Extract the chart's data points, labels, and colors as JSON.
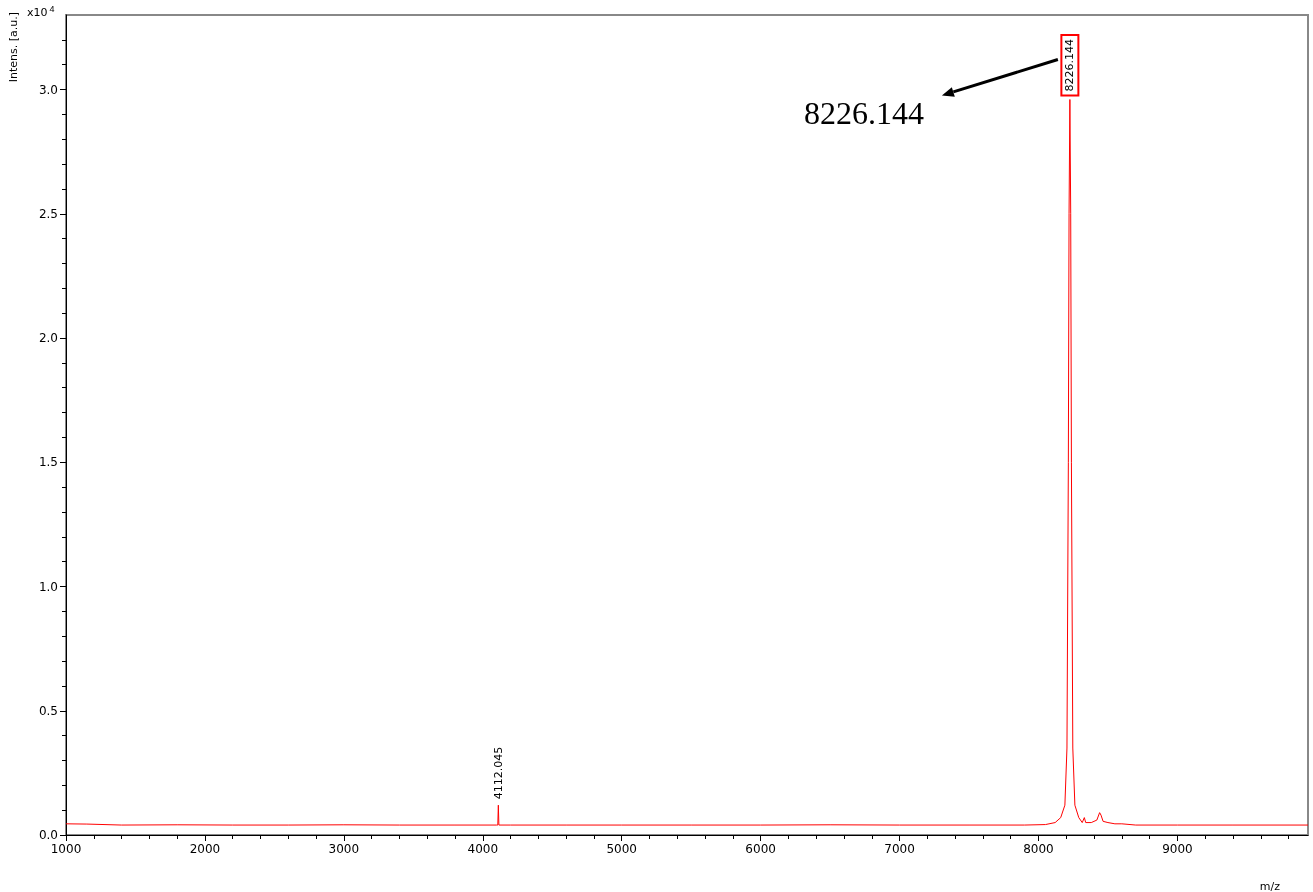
{
  "chart_data": {
    "type": "line",
    "xlabel": "m/z",
    "ylabel": "Intens. [a.u.]",
    "xlim": [
      1000,
      9940
    ],
    "xticks": [
      1000,
      2000,
      3000,
      4000,
      5000,
      6000,
      7000,
      8000,
      9000
    ],
    "ylim": [
      0,
      3.3
    ],
    "yticks": [
      {
        "value": 0,
        "label": "0.0"
      },
      {
        "value": 0.5,
        "label": "0.5"
      },
      {
        "value": 1,
        "label": "1.0"
      },
      {
        "value": 1.5,
        "label": "1.5"
      },
      {
        "value": 2,
        "label": "2.0"
      },
      {
        "value": 2.5,
        "label": "2.5"
      },
      {
        "value": 3,
        "label": "3.0"
      }
    ],
    "grid": false,
    "marker": "none",
    "line_style": "solid",
    "series": [
      {
        "color": "#ff0000",
        "x": [
          1000,
          1150,
          1400,
          1800,
          2200,
          2600,
          3000,
          3400,
          3800,
          4100,
          4108,
          4112,
          4116,
          4200,
          4600,
          5000,
          5500,
          6000,
          6500,
          7000,
          7500,
          7900,
          8050,
          8120,
          8160,
          8190,
          8205,
          8215,
          8220,
          8226,
          8232,
          8237,
          8247,
          8262,
          8290,
          8315,
          8330,
          8340,
          8380,
          8420,
          8440,
          8450,
          8465,
          8500,
          8550,
          8600,
          8700,
          9000,
          9400,
          9940
        ],
        "values": [
          0.045,
          0.044,
          0.04,
          0.041,
          0.04,
          0.04,
          0.041,
          0.04,
          0.04,
          0.04,
          0.04,
          0.12,
          0.04,
          0.04,
          0.04,
          0.04,
          0.04,
          0.04,
          0.041,
          0.04,
          0.04,
          0.04,
          0.042,
          0.05,
          0.07,
          0.12,
          0.35,
          1.5,
          2.5,
          2.96,
          2.5,
          1.5,
          0.35,
          0.12,
          0.07,
          0.05,
          0.07,
          0.05,
          0.05,
          0.06,
          0.09,
          0.08,
          0.055,
          0.05,
          0.045,
          0.045,
          0.04,
          0.04,
          0.04,
          0.04
        ]
      }
    ],
    "annotations": [
      "x10$^{4}$",
      {
        "text": "4112.045",
        "x": 4112,
        "y": 0.12
      },
      {
        "text": "8226.144",
        "x": 8226,
        "y": 2.96
      },
      "8226.144"
    ]
  }
}
